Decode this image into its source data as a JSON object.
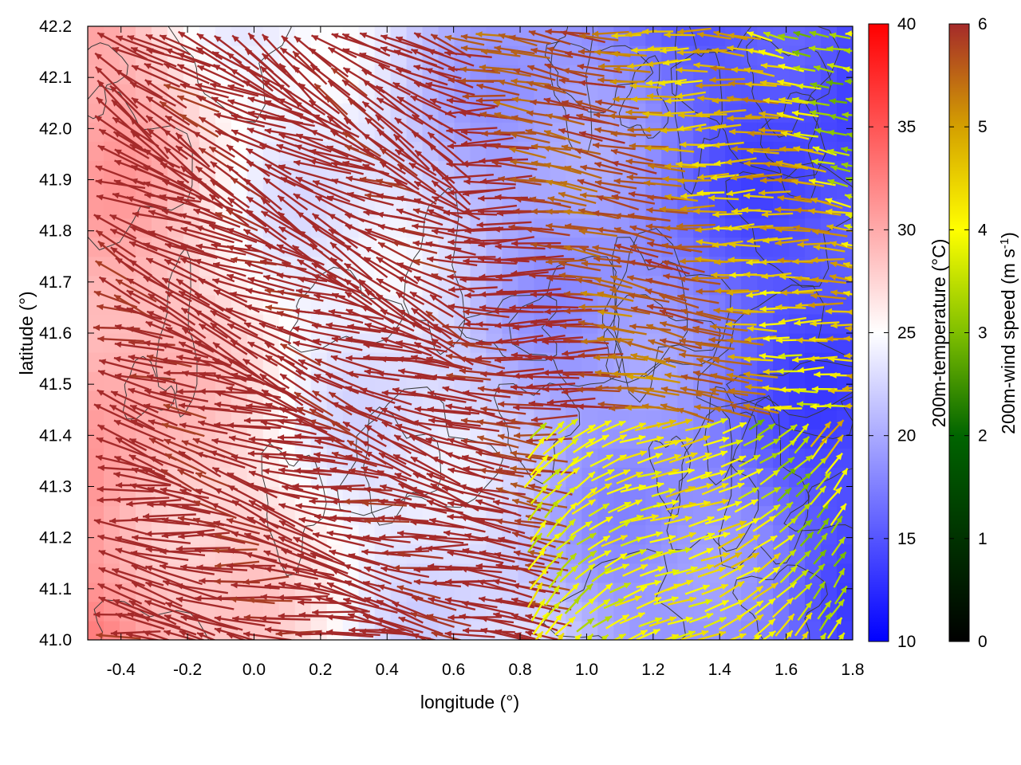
{
  "chart_data": {
    "type": "heatmap",
    "xlabel": "longitude (°)",
    "ylabel": "latitude (°)",
    "xlim": [
      -0.5,
      1.8
    ],
    "ylim": [
      41.0,
      42.2
    ],
    "x_ticks": [
      "-0.4",
      "-0.2",
      "0.0",
      "0.2",
      "0.4",
      "0.6",
      "0.8",
      "1.0",
      "1.2",
      "1.4",
      "1.6",
      "1.8"
    ],
    "y_ticks": [
      "41.0",
      "41.1",
      "41.2",
      "41.3",
      "41.4",
      "41.5",
      "41.6",
      "41.7",
      "41.8",
      "41.9",
      "42.0",
      "42.1",
      "42.2"
    ],
    "layers": [
      {
        "kind": "filled-field",
        "quantity": "200m-temperature",
        "colorbar_label": "200m-temperature (°C)",
        "range": [
          10,
          40
        ],
        "colorbar_ticks": [
          "10",
          "15",
          "20",
          "25",
          "30",
          "35",
          "40"
        ],
        "colormap": [
          "#0000ff",
          "#ffffff",
          "#ff0000"
        ]
      },
      {
        "kind": "vector-field",
        "quantity": "200m-wind speed",
        "colorbar_label": "200m-wind speed (m s",
        "colorbar_label_sup": "-1",
        "colorbar_label_end": ")",
        "range": [
          0,
          6
        ],
        "colorbar_ticks": [
          "0",
          "1",
          "2",
          "3",
          "4",
          "5",
          "6"
        ],
        "colormap": [
          "#000000",
          "#006400",
          "#7fbf00",
          "#ffff00",
          "#d4a000",
          "#b05a1e",
          "#a52a2a"
        ]
      },
      {
        "kind": "contours",
        "color": "#3a3a3a"
      }
    ]
  }
}
